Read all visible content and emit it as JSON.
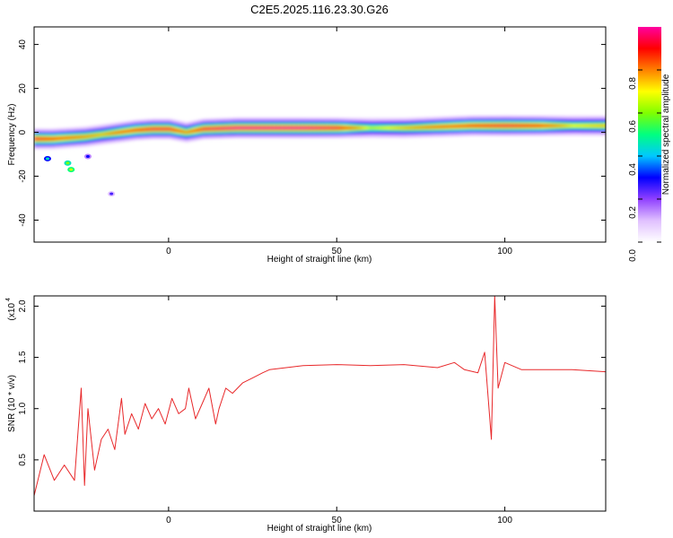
{
  "title": "C2E5.2025.116.23.30.G26",
  "chart_data": [
    {
      "type": "heatmap",
      "xlabel": "Height of straight line (km)",
      "ylabel": "Frequency (Hz)",
      "xlim": [
        -40,
        130
      ],
      "ylim": [
        -50,
        48
      ],
      "xticks": [
        0,
        50,
        100
      ],
      "yticks": [
        -40,
        -20,
        0,
        20,
        40
      ],
      "grid": false,
      "colorbar": {
        "label": "Normalized spectral amplitude",
        "range": [
          0.0,
          1.0
        ],
        "ticks": [
          0.0,
          0.2,
          0.4,
          0.6,
          0.8
        ],
        "tick_labels": [
          "0.0",
          "0.2",
          "0.4",
          "0.6",
          "0.8"
        ],
        "colormap": [
          "#ffffff",
          "#e0c0ff",
          "#9040ff",
          "#0000ff",
          "#00c8ff",
          "#00ff80",
          "#80ff00",
          "#ffff00",
          "#ff8000",
          "#ff0000",
          "#ff00a0"
        ]
      },
      "ridge": {
        "x": [
          -40,
          -35,
          -30,
          -25,
          -20,
          -15,
          -10,
          -5,
          0,
          5,
          10,
          20,
          30,
          40,
          50,
          60,
          70,
          80,
          90,
          100,
          110,
          120,
          130
        ],
        "frequency": [
          -3,
          -3,
          -2.5,
          -2,
          -1,
          0,
          1,
          1.5,
          1.5,
          0,
          1.5,
          2,
          2,
          2,
          2,
          2,
          2,
          2.5,
          3,
          3,
          3,
          3,
          3
        ],
        "amplitude": [
          0.95,
          0.9,
          0.85,
          0.8,
          0.75,
          0.85,
          0.9,
          0.95,
          0.95,
          0.8,
          0.95,
          1.0,
          1.0,
          1.0,
          0.95,
          0.65,
          0.75,
          0.85,
          0.9,
          0.95,
          0.9,
          0.7,
          0.75
        ]
      },
      "scattered_patches": [
        {
          "x": -36,
          "frequency": -12,
          "amplitude": 0.3
        },
        {
          "x": -30,
          "frequency": -14,
          "amplitude": 0.45
        },
        {
          "x": -29,
          "frequency": -17,
          "amplitude": 0.5
        },
        {
          "x": -24,
          "frequency": -11,
          "amplitude": 0.15
        },
        {
          "x": -17,
          "frequency": -28,
          "amplitude": 0.1
        }
      ]
    },
    {
      "type": "line",
      "xlabel": "Height of straight line (km)",
      "ylabel": "SNR (10 * v/v)",
      "multiplier_label": "(x10",
      "multiplier_exponent": "4",
      "xlim": [
        -40,
        130
      ],
      "ylim": [
        0.0,
        2.1
      ],
      "xticks": [
        0,
        50,
        100
      ],
      "yticks": [
        0.5,
        1.0,
        1.5,
        2.0
      ],
      "ytick_labels": [
        "0.5",
        "1.0",
        "1.5",
        "2.0"
      ],
      "grid": false,
      "color": "#e8282a",
      "x": [
        -40,
        -37,
        -34,
        -31,
        -28,
        -26,
        -25,
        -24,
        -22,
        -20,
        -18,
        -16,
        -14,
        -13,
        -11,
        -9,
        -7,
        -5,
        -3,
        -1,
        1,
        3,
        5,
        6,
        8,
        10,
        12,
        14,
        15,
        17,
        19,
        22,
        25,
        28,
        30,
        35,
        40,
        50,
        60,
        70,
        80,
        85,
        88,
        92,
        94,
        96,
        97,
        98,
        100,
        105,
        110,
        120,
        130
      ],
      "y": [
        0.15,
        0.55,
        0.3,
        0.45,
        0.3,
        1.2,
        0.25,
        1.0,
        0.4,
        0.7,
        0.8,
        0.6,
        1.1,
        0.75,
        0.95,
        0.8,
        1.05,
        0.9,
        1.0,
        0.85,
        1.1,
        0.95,
        1.0,
        1.2,
        0.9,
        1.05,
        1.2,
        0.85,
        1.0,
        1.2,
        1.15,
        1.25,
        1.3,
        1.35,
        1.38,
        1.4,
        1.42,
        1.43,
        1.42,
        1.43,
        1.4,
        1.45,
        1.38,
        1.35,
        1.55,
        0.7,
        2.1,
        1.2,
        1.45,
        1.38,
        1.38,
        1.38,
        1.36
      ]
    }
  ]
}
